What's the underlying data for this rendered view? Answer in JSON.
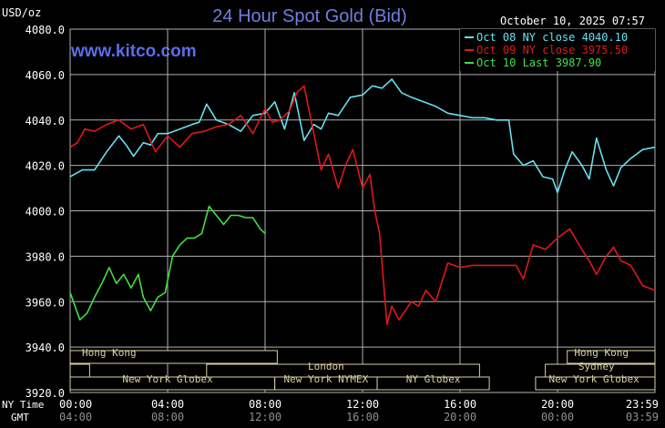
{
  "chart_data": {
    "type": "line",
    "title": "24 Hour Spot Gold (Bid)",
    "ylabel": "USD/oz",
    "website": "www.kitco.com",
    "timestamp": "October 10, 2025 07:57",
    "ylim": [
      3920,
      4080
    ],
    "yticks": [
      "4080.0",
      "4060.0",
      "4040.0",
      "4020.0",
      "4000.0",
      "3980.0",
      "3960.0",
      "3940.0",
      "3920.0"
    ],
    "ny_time_label": "NY Time",
    "gmt_label": "GMT",
    "x_ticks_ny": [
      "00:00",
      "04:00",
      "08:00",
      "12:00",
      "16:00",
      "20:00",
      "23:59"
    ],
    "x_ticks_gmt": [
      "04:00",
      "08:00",
      "12:00",
      "16:00",
      "20:00",
      "00:00",
      "03:59"
    ],
    "grid": true,
    "legend_position": "top-right",
    "series": [
      {
        "name": "Oct 08 NY close 4040.10",
        "color": "#66e0f0",
        "x": [
          0,
          0.5,
          1,
          1.5,
          2,
          2.3,
          2.6,
          3,
          3.3,
          3.6,
          4,
          4.5,
          5,
          5.3,
          5.6,
          6,
          6.5,
          7,
          7.5,
          8,
          8.4,
          8.8,
          9.2,
          9.6,
          10,
          10.3,
          10.6,
          11,
          11.5,
          12,
          12.4,
          12.8,
          13.2,
          13.6,
          14,
          14.5,
          15,
          15.5,
          16,
          16.5,
          17,
          17.5,
          18,
          18.2,
          18.6,
          19,
          19.4,
          19.8,
          20,
          20.3,
          20.6,
          21,
          21.3,
          21.6,
          22,
          22.3,
          22.6,
          23,
          23.5,
          24
        ],
        "y": [
          4015,
          4018,
          4018,
          4026,
          4033,
          4029,
          4024,
          4030,
          4029,
          4034,
          4034,
          4036,
          4038,
          4039,
          4047,
          4040,
          4038,
          4035,
          4042,
          4043,
          4048,
          4036,
          4052,
          4031,
          4038,
          4036,
          4043,
          4042,
          4050,
          4051,
          4055,
          4054,
          4058,
          4052,
          4050,
          4048,
          4046,
          4043,
          4042,
          4041,
          4041,
          4040,
          4040,
          4025,
          4020,
          4022,
          4015,
          4014,
          4008,
          4018,
          4026,
          4020,
          4014,
          4032,
          4018,
          4011,
          4019,
          4023,
          4027,
          4028
        ]
      },
      {
        "name": "Oct 09 NY close 3975.50",
        "color": "#e01818",
        "x": [
          0,
          0.3,
          0.6,
          1,
          1.5,
          2,
          2.5,
          3,
          3.5,
          4,
          4.5,
          5,
          5.5,
          6,
          6.5,
          7,
          7.5,
          8,
          8.3,
          8.6,
          9,
          9.3,
          9.6,
          10,
          10.3,
          10.6,
          11,
          11.3,
          11.6,
          12,
          12.3,
          12.5,
          12.7,
          13,
          13.2,
          13.5,
          14,
          14.3,
          14.6,
          15,
          15.5,
          16,
          16.5,
          17,
          17.5,
          18,
          18.3,
          18.6,
          19,
          19.5,
          20,
          20.5,
          21,
          21.3,
          21.6,
          22,
          22.3,
          22.6,
          23,
          23.5,
          24
        ],
        "y": [
          4028,
          4030,
          4036,
          4035,
          4038,
          4040,
          4036,
          4038,
          4026,
          4033,
          4028,
          4034,
          4035,
          4037,
          4038,
          4042,
          4034,
          4045,
          4039,
          4040,
          4044,
          4052,
          4055,
          4034,
          4018,
          4025,
          4010,
          4020,
          4027,
          4010,
          4016,
          4000,
          3990,
          3950,
          3958,
          3952,
          3960,
          3958,
          3965,
          3960,
          3977,
          3975,
          3976,
          3976,
          3976,
          3976,
          3976,
          3970,
          3985,
          3983,
          3988,
          3992,
          3983,
          3978,
          3972,
          3980,
          3984,
          3978,
          3976,
          3967,
          3965
        ]
      },
      {
        "name": "Oct 10 Last 3987.90",
        "color": "#40e040",
        "x": [
          0,
          0.2,
          0.4,
          0.7,
          1,
          1.3,
          1.6,
          1.9,
          2.2,
          2.5,
          2.8,
          3,
          3.3,
          3.6,
          3.9,
          4.2,
          4.5,
          4.8,
          5.1,
          5.4,
          5.7,
          6,
          6.3,
          6.6,
          6.9,
          7.2,
          7.5,
          7.8,
          8
        ],
        "y": [
          3964,
          3958,
          3952,
          3955,
          3962,
          3968,
          3975,
          3968,
          3972,
          3966,
          3972,
          3962,
          3956,
          3962,
          3964,
          3980,
          3985,
          3988,
          3988,
          3990,
          4002,
          3998,
          3994,
          3998,
          3998,
          3997,
          3997,
          3992,
          3990
        ]
      }
    ],
    "sessions": {
      "row1": [
        "Hong Kong",
        "Hong Kong"
      ],
      "row2": [
        "London",
        "Sydney"
      ],
      "row3": [
        "New York Globex",
        "New York NYMEX",
        "NY Globex",
        "New York Globex"
      ]
    }
  }
}
